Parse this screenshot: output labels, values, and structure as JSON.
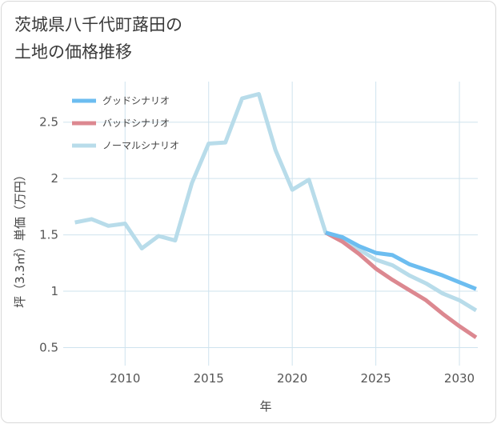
{
  "title_lines": [
    "茨城県八千代町蕗田の",
    "土地の価格推移"
  ],
  "chart_data": {
    "type": "line",
    "title": "茨城県八千代町蕗田の土地の価格推移",
    "xlabel": "年",
    "ylabel": "坪（3.3㎡）単価（万円）",
    "xlim": [
      2006.3,
      2031.1
    ],
    "ylim": [
      0.34,
      2.86
    ],
    "xticks": [
      2010,
      2015,
      2020,
      2025,
      2030
    ],
    "xtick_labels": [
      "2010",
      "2015",
      "2020",
      "2025",
      "2030"
    ],
    "yticks": [
      0.5,
      1,
      1.5,
      2,
      2.5
    ],
    "ytick_labels": [
      "0.5",
      "1",
      "1.5",
      "2",
      "2.5"
    ],
    "grid": true,
    "legend_position": "top-left",
    "series": [
      {
        "name": "グッドシナリオ",
        "color": "#6cbdf0",
        "x": [
          2022,
          2023,
          2024,
          2025,
          2026,
          2027,
          2028,
          2029,
          2030,
          2031
        ],
        "values": [
          1.52,
          1.48,
          1.4,
          1.34,
          1.32,
          1.24,
          1.19,
          1.14,
          1.08,
          1.02
        ]
      },
      {
        "name": "バッドシナリオ",
        "color": "#dc8890",
        "x": [
          2022,
          2023,
          2024,
          2025,
          2026,
          2027,
          2028,
          2029,
          2030,
          2031
        ],
        "values": [
          1.52,
          1.44,
          1.33,
          1.2,
          1.1,
          1.01,
          0.92,
          0.8,
          0.69,
          0.59
        ]
      },
      {
        "name": "ノーマルシナリオ",
        "color": "#b8dcea",
        "x": [
          2007,
          2008,
          2009,
          2010,
          2011,
          2012,
          2013,
          2014,
          2015,
          2016,
          2017,
          2018,
          2019,
          2020,
          2021,
          2022,
          2023,
          2024,
          2025,
          2026,
          2027,
          2028,
          2029,
          2030,
          2031
        ],
        "values": [
          1.61,
          1.64,
          1.58,
          1.6,
          1.38,
          1.49,
          1.45,
          1.96,
          2.31,
          2.32,
          2.71,
          2.75,
          2.25,
          1.9,
          1.99,
          1.52,
          1.46,
          1.37,
          1.28,
          1.23,
          1.14,
          1.07,
          0.98,
          0.92,
          0.83
        ]
      }
    ]
  }
}
